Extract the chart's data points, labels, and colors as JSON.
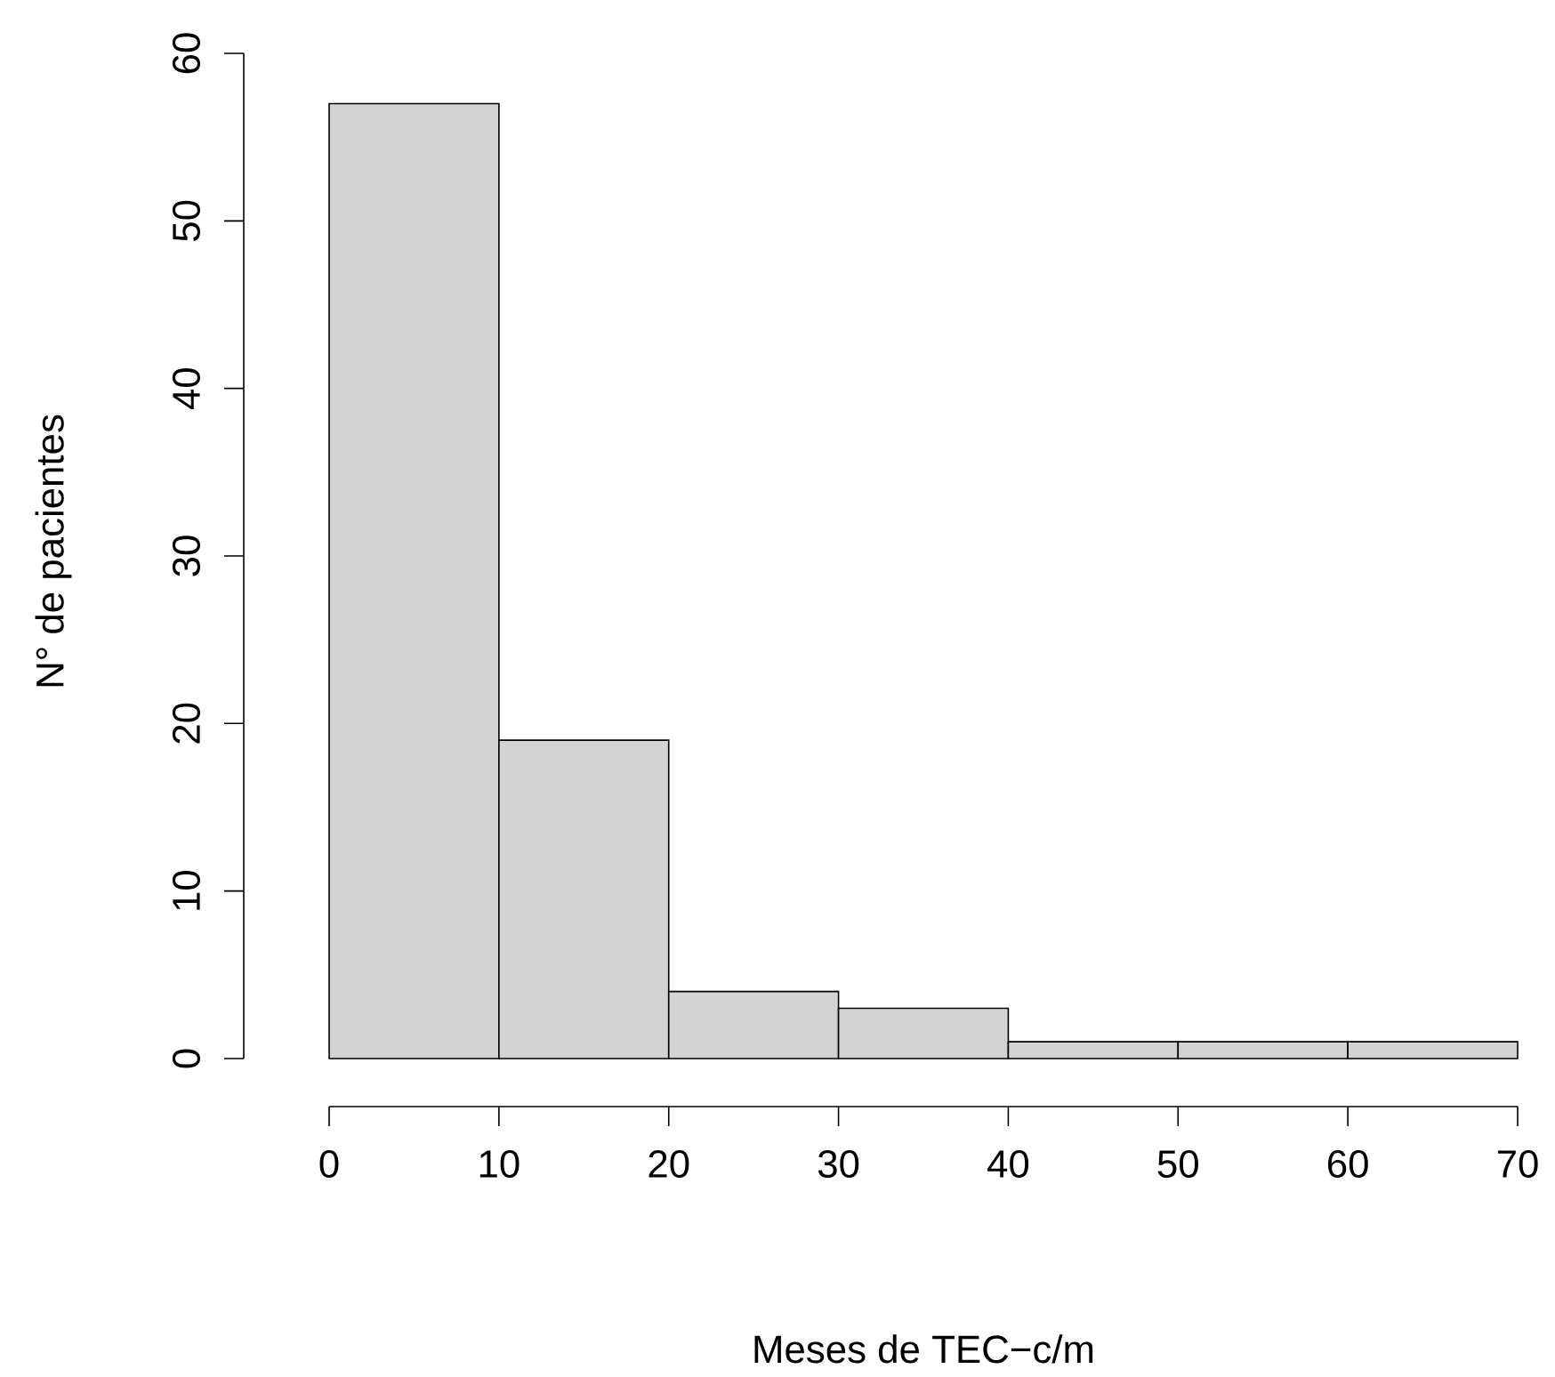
{
  "chart_data": {
    "type": "histogram",
    "xlabel": "Meses de TEC−c/m",
    "ylabel": "N° de pacientes",
    "bins": [
      0,
      10,
      20,
      30,
      40,
      50,
      60,
      70
    ],
    "values": [
      57,
      19,
      4,
      3,
      1,
      1,
      1
    ],
    "color": "#d3d3d3",
    "xlim": [
      0,
      70
    ],
    "xticks": [
      0,
      10,
      20,
      30,
      40,
      50,
      60,
      70
    ],
    "ylim": [
      0,
      60
    ],
    "yticks": [
      0,
      10,
      20,
      30,
      40,
      50,
      60
    ]
  }
}
